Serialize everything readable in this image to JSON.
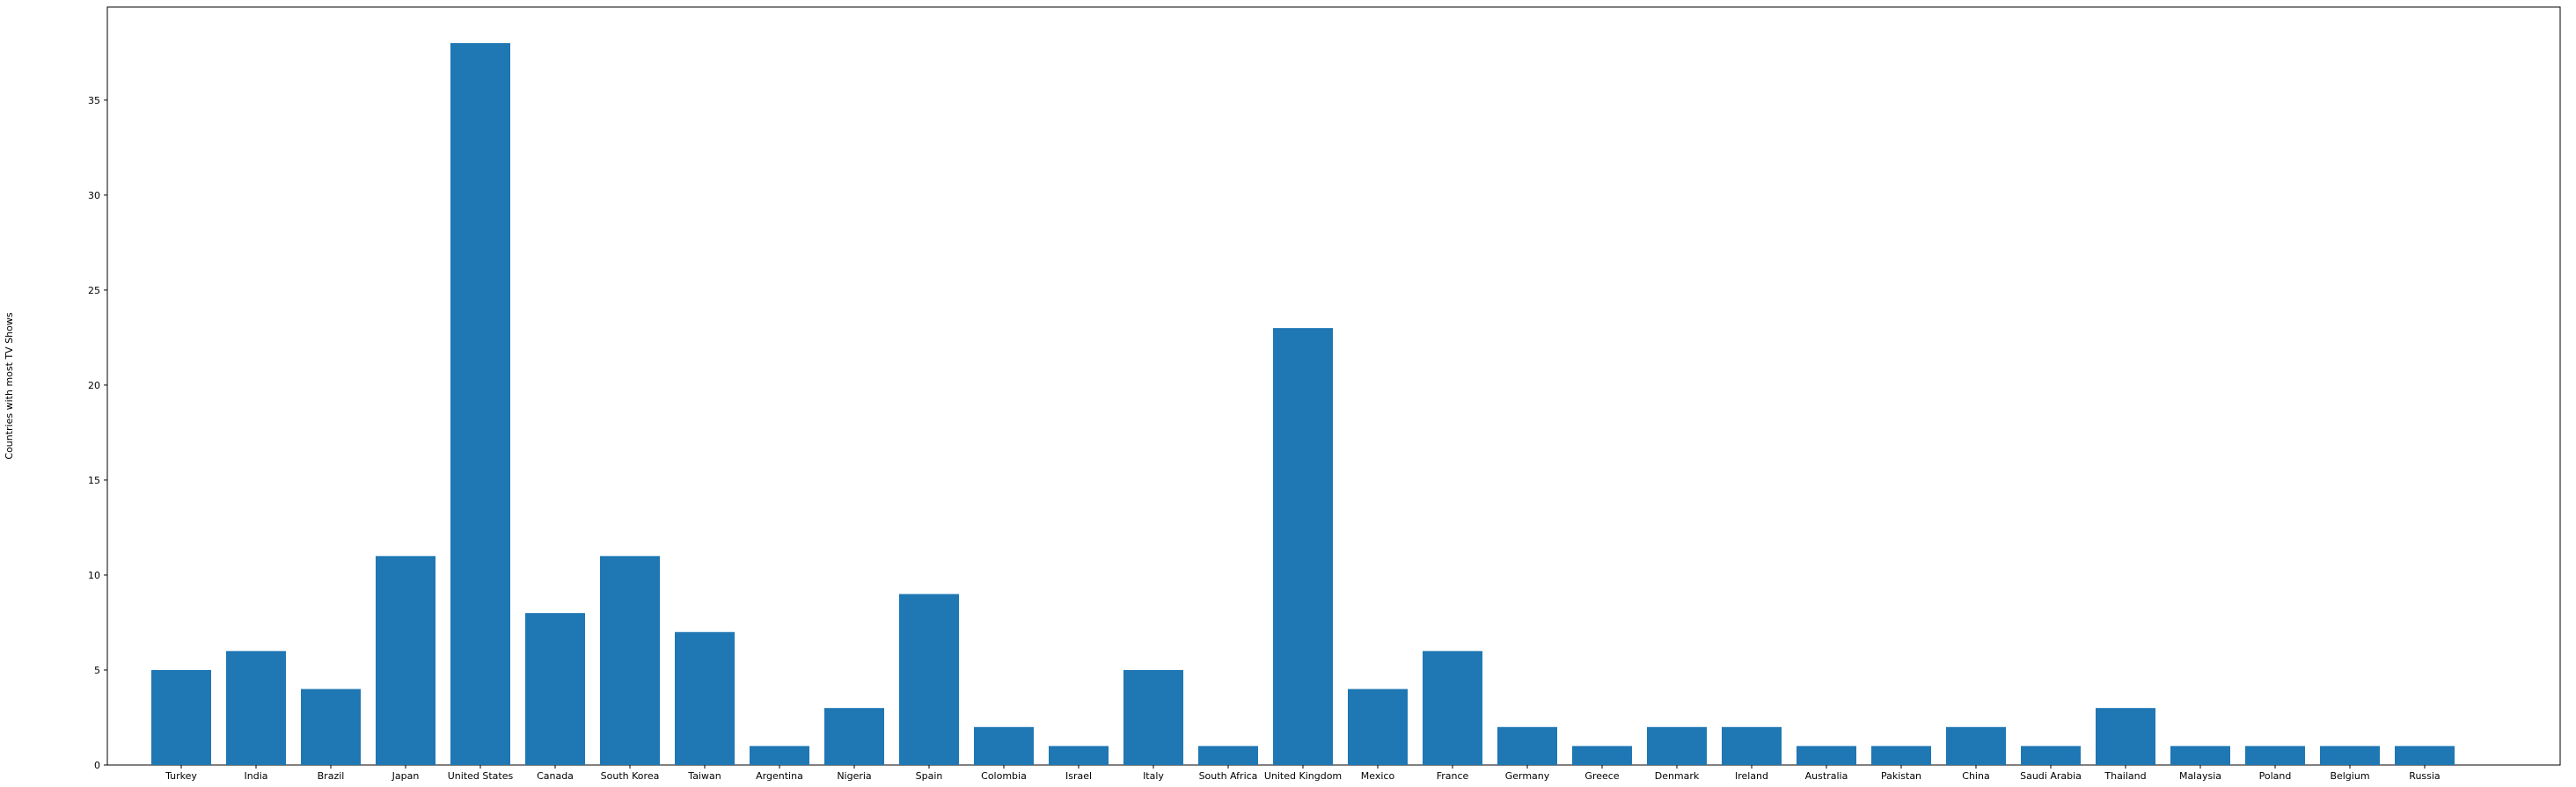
{
  "chart_data": {
    "type": "bar",
    "title": "",
    "xlabel": "",
    "ylabel": "Countries with most TV Shows",
    "categories": [
      "Turkey",
      "India",
      "Brazil",
      "Japan",
      "United States",
      "Canada",
      "South Korea",
      "Taiwan",
      "Argentina",
      "Nigeria",
      "Spain",
      "Colombia",
      "Israel",
      "Italy",
      "South Africa",
      "United Kingdom",
      "Mexico",
      "France",
      "Germany",
      "Greece",
      "Denmark",
      "Ireland",
      "Australia",
      "Pakistan",
      "China",
      "Saudi Arabia",
      "Thailand",
      "Malaysia",
      "Poland",
      "Belgium",
      "Russia"
    ],
    "values": [
      5,
      6,
      4,
      11,
      38,
      8,
      11,
      7,
      1,
      3,
      9,
      2,
      1,
      5,
      1,
      23,
      4,
      6,
      2,
      1,
      2,
      2,
      1,
      1,
      2,
      1,
      3,
      1,
      1,
      1,
      1
    ],
    "yticks": [
      0,
      5,
      10,
      15,
      20,
      25,
      30,
      35
    ],
    "ylim": [
      0,
      39.9
    ],
    "grid": false,
    "legend": "none",
    "colors": {
      "bar": "#1f77b4",
      "axis": "#000000"
    }
  }
}
